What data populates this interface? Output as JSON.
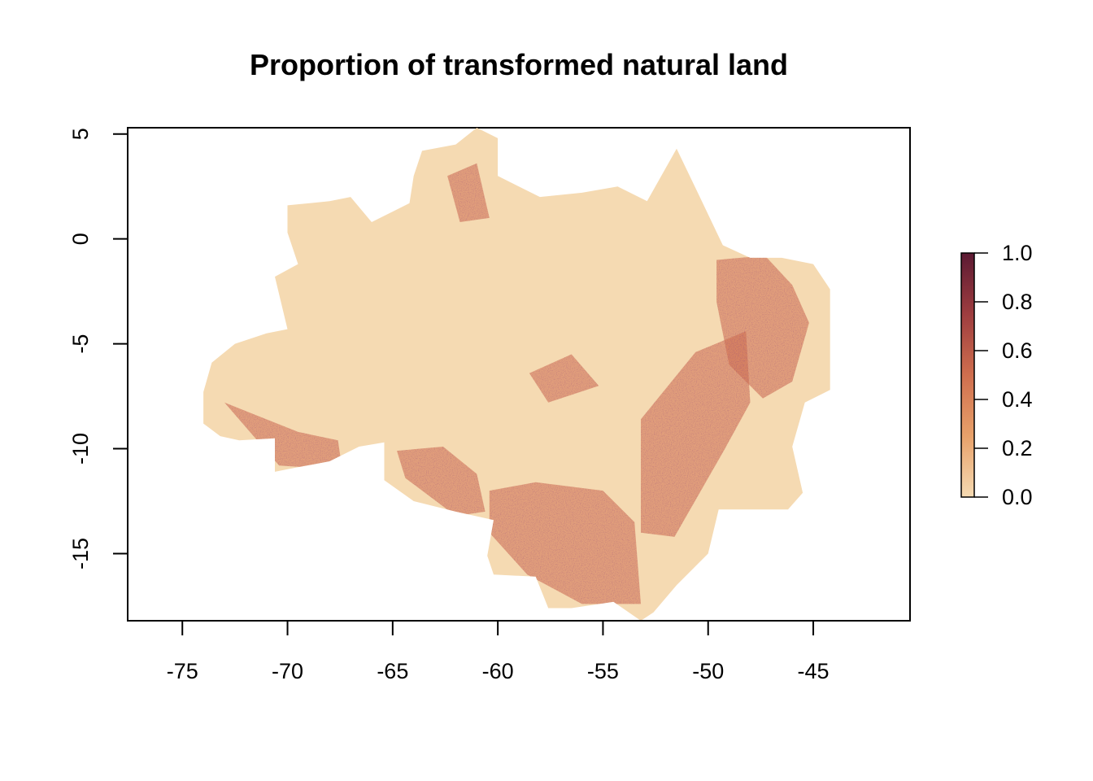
{
  "title": "Proportion of transformed natural land",
  "chart_data": {
    "type": "heatmap",
    "title": "Proportion of transformed natural land",
    "xlabel": "",
    "ylabel": "",
    "xlim": [
      -77.6,
      -40.4
    ],
    "ylim": [
      -18.2,
      5.3
    ],
    "x_ticks": [
      -75,
      -70,
      -65,
      -60,
      -55,
      -50,
      -45
    ],
    "y_ticks": [
      5,
      0,
      -5,
      -10,
      -15
    ],
    "x_tick_labels": [
      "-75",
      "-70",
      "-65",
      "-60",
      "-55",
      "-50",
      "-45"
    ],
    "y_tick_labels": [
      "5",
      "0",
      "-5",
      "-10",
      "-15"
    ],
    "legend": {
      "placement": "right",
      "min": 0,
      "max": 1,
      "ticks": [
        1.0,
        0.8,
        0.6,
        0.4,
        0.2,
        0.0
      ],
      "tick_labels": [
        "1.0",
        "0.8",
        "0.6",
        "0.4",
        "0.2",
        "0.0"
      ],
      "colors": [
        "#f5dab2",
        "#e8a16a",
        "#cf6e4e",
        "#9e3d3f",
        "#5c1a33"
      ]
    },
    "region_outline_lonlat": [
      [
        -74,
        -7.3
      ],
      [
        -73.6,
        -5.9
      ],
      [
        -72.5,
        -5
      ],
      [
        -71,
        -4.5
      ],
      [
        -70,
        -4.3
      ],
      [
        -70.6,
        -1.8
      ],
      [
        -69.5,
        -1.2
      ],
      [
        -70,
        0.3
      ],
      [
        -70,
        1.6
      ],
      [
        -68,
        1.8
      ],
      [
        -67,
        2
      ],
      [
        -66,
        0.8
      ],
      [
        -64.2,
        1.7
      ],
      [
        -64,
        3
      ],
      [
        -63.6,
        4.2
      ],
      [
        -62,
        4.5
      ],
      [
        -61,
        5.3
      ],
      [
        -60,
        4.8
      ],
      [
        -60,
        3
      ],
      [
        -58,
        2
      ],
      [
        -56,
        2.2
      ],
      [
        -54.3,
        2.5
      ],
      [
        -52.9,
        1.8
      ],
      [
        -51.5,
        4.3
      ],
      [
        -50.3,
        1.8
      ],
      [
        -49.3,
        -0.3
      ],
      [
        -48,
        -0.9
      ],
      [
        -46.5,
        -0.9
      ],
      [
        -45,
        -1.2
      ],
      [
        -44.2,
        -2.4
      ],
      [
        -44.2,
        -7.2
      ],
      [
        -45.4,
        -7.8
      ],
      [
        -46,
        -9.9
      ],
      [
        -45.5,
        -12.1
      ],
      [
        -46.2,
        -12.9
      ],
      [
        -49.5,
        -12.9
      ],
      [
        -50,
        -15
      ],
      [
        -51.5,
        -16.5
      ],
      [
        -52.6,
        -17.8
      ],
      [
        -53.2,
        -18.2
      ],
      [
        -54.5,
        -17.3
      ],
      [
        -56.5,
        -17.6
      ],
      [
        -57.6,
        -17.6
      ],
      [
        -58.2,
        -16.1
      ],
      [
        -60.2,
        -16
      ],
      [
        -60.5,
        -15.1
      ],
      [
        -60.2,
        -13.4
      ],
      [
        -62,
        -13
      ],
      [
        -64,
        -12.5
      ],
      [
        -65.4,
        -11.5
      ],
      [
        -65.4,
        -9.7
      ],
      [
        -66.6,
        -9.9
      ],
      [
        -68,
        -10.6
      ],
      [
        -69.6,
        -10.9
      ],
      [
        -70.6,
        -11.1
      ],
      [
        -70.6,
        -9.5
      ],
      [
        -72.3,
        -9.6
      ],
      [
        -73.2,
        -9.4
      ],
      [
        -74,
        -8.8
      ]
    ],
    "high_transformation_zones_lonlat": [
      [
        [
          -64.8,
          -10.1
        ],
        [
          -62.6,
          -9.9
        ],
        [
          -61,
          -11.2
        ],
        [
          -60.6,
          -13
        ],
        [
          -62,
          -13.2
        ],
        [
          -64.4,
          -11.4
        ]
      ],
      [
        [
          -60.4,
          -12
        ],
        [
          -58.2,
          -11.6
        ],
        [
          -55,
          -12
        ],
        [
          -53.5,
          -13.5
        ],
        [
          -53.2,
          -17.4
        ],
        [
          -56,
          -17.4
        ],
        [
          -58.6,
          -16
        ],
        [
          -60.4,
          -14
        ]
      ],
      [
        [
          -53.2,
          -8.6
        ],
        [
          -50.6,
          -5.4
        ],
        [
          -48.2,
          -4.4
        ],
        [
          -48,
          -7.8
        ],
        [
          -49.2,
          -10
        ],
        [
          -51.6,
          -14.2
        ],
        [
          -53.2,
          -14
        ]
      ],
      [
        [
          -49.6,
          -1
        ],
        [
          -47.3,
          -0.8
        ],
        [
          -46,
          -2.2
        ],
        [
          -45.2,
          -4
        ],
        [
          -46,
          -6.8
        ],
        [
          -47.4,
          -7.6
        ],
        [
          -49,
          -6
        ],
        [
          -49.6,
          -3
        ]
      ],
      [
        [
          -73,
          -7.8
        ],
        [
          -69.5,
          -9.2
        ],
        [
          -67.6,
          -9.6
        ],
        [
          -67.4,
          -11
        ],
        [
          -70.4,
          -10.8
        ]
      ],
      [
        [
          -58.5,
          -6.4
        ],
        [
          -56.5,
          -5.5
        ],
        [
          -55.2,
          -7
        ],
        [
          -57.6,
          -7.8
        ]
      ],
      [
        [
          -62.4,
          3
        ],
        [
          -61,
          3.6
        ],
        [
          -60.4,
          1
        ],
        [
          -61.8,
          0.8
        ]
      ]
    ]
  }
}
